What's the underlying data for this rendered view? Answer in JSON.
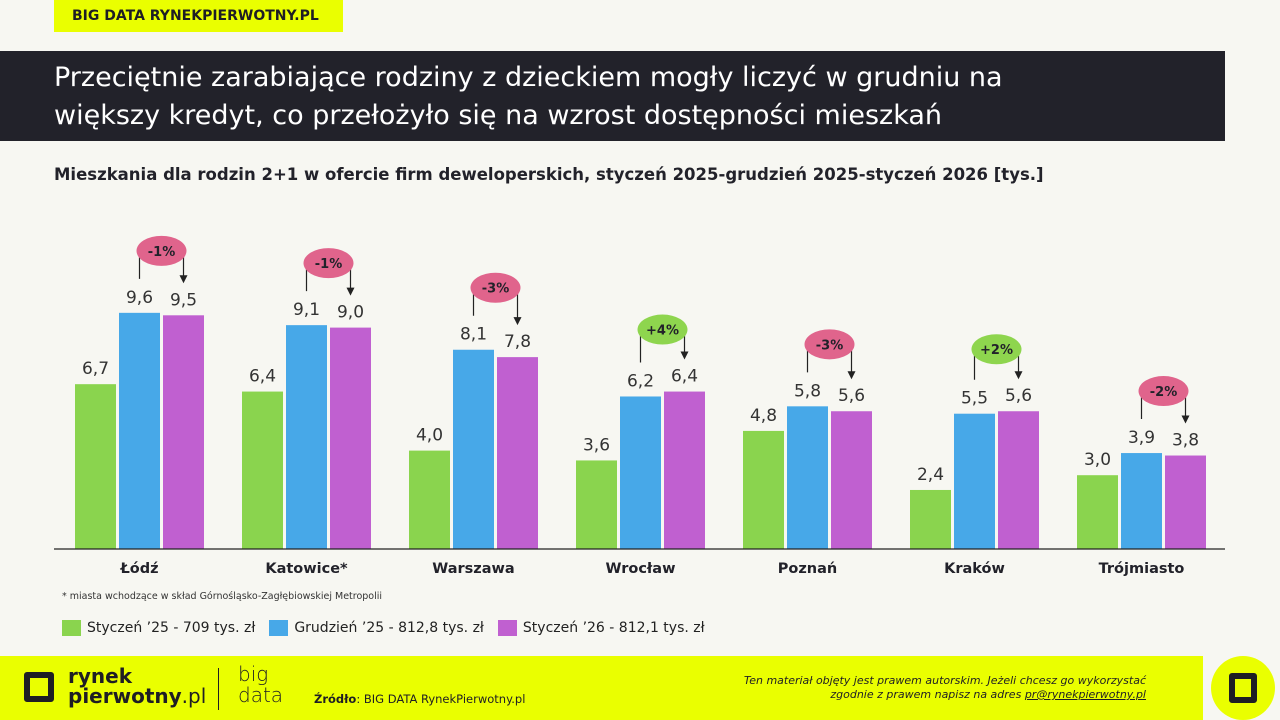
{
  "tag": "BIG DATA RYNEKPIERWOTNY.PL",
  "title_line1": "Przeciętnie zarabiające rodziny z dzieckiem mogły liczyć w grudniu na",
  "title_line2": "większy kredyt, co przełożyło się na wzrost dostępności mieszkań",
  "chart_data": {
    "type": "bar",
    "title": "Mieszkania dla rodzin 2+1 w ofercie firm deweloperskich, styczeń 2025-grudzień 2025-styczeń 2026 [tys.]",
    "categories": [
      "Łódź",
      "Katowice*",
      "Warszawa",
      "Wrocław",
      "Poznań",
      "Kraków",
      "Trójmiasto"
    ],
    "series": [
      {
        "name": "Styczeń ’25 - 709 tys. zł",
        "color": "#8ad44e",
        "values": [
          6.7,
          6.4,
          4.0,
          3.6,
          4.8,
          2.4,
          3.0
        ],
        "labels": [
          "6,7",
          "6,4",
          "4,0",
          "3,6",
          "4,8",
          "2,4",
          "3,0"
        ]
      },
      {
        "name": "Grudzień ’25 - 812,8 tys. zł",
        "color": "#47a8e8",
        "values": [
          9.6,
          9.1,
          8.1,
          6.2,
          5.8,
          5.5,
          3.9
        ],
        "labels": [
          "9,6",
          "9,1",
          "8,1",
          "6,2",
          "5,8",
          "5,5",
          "3,9"
        ]
      },
      {
        "name": "Styczeń ’26 - 812,1 tys. zł",
        "color": "#c060d0",
        "values": [
          9.5,
          9.0,
          7.8,
          6.4,
          5.6,
          5.6,
          3.8
        ],
        "labels": [
          "9,5",
          "9,0",
          "7,8",
          "6,4",
          "5,6",
          "5,6",
          "3,8"
        ]
      }
    ],
    "changes": [
      "-1%",
      "-1%",
      "-3%",
      "+4%",
      "-3%",
      "+2%",
      "-2%"
    ],
    "change_colors": {
      "negative": "#e0648c",
      "positive": "#8ed54e"
    },
    "ylim": [
      0,
      10
    ],
    "grid": false,
    "legend": "bottom-left"
  },
  "note": "* miasta wchodzące w skład Górnośląsko-Zagłębiowskiej Metropolii",
  "footer": {
    "logo_line1": "rynek",
    "logo_line2": "pierwotny",
    "logo_suffix": ".pl",
    "big": "big",
    "data": "data",
    "source_label": "Źródło",
    "source_text": ": BIG DATA RynekPierwotny.pl",
    "copy_line1": "Ten materiał objęty jest prawem autorskim. Jeżeli chcesz go wykorzystać",
    "copy_line2": "zgodnie z prawem napisz na adres ",
    "email": "pr@rynekpierwotny.pl"
  }
}
